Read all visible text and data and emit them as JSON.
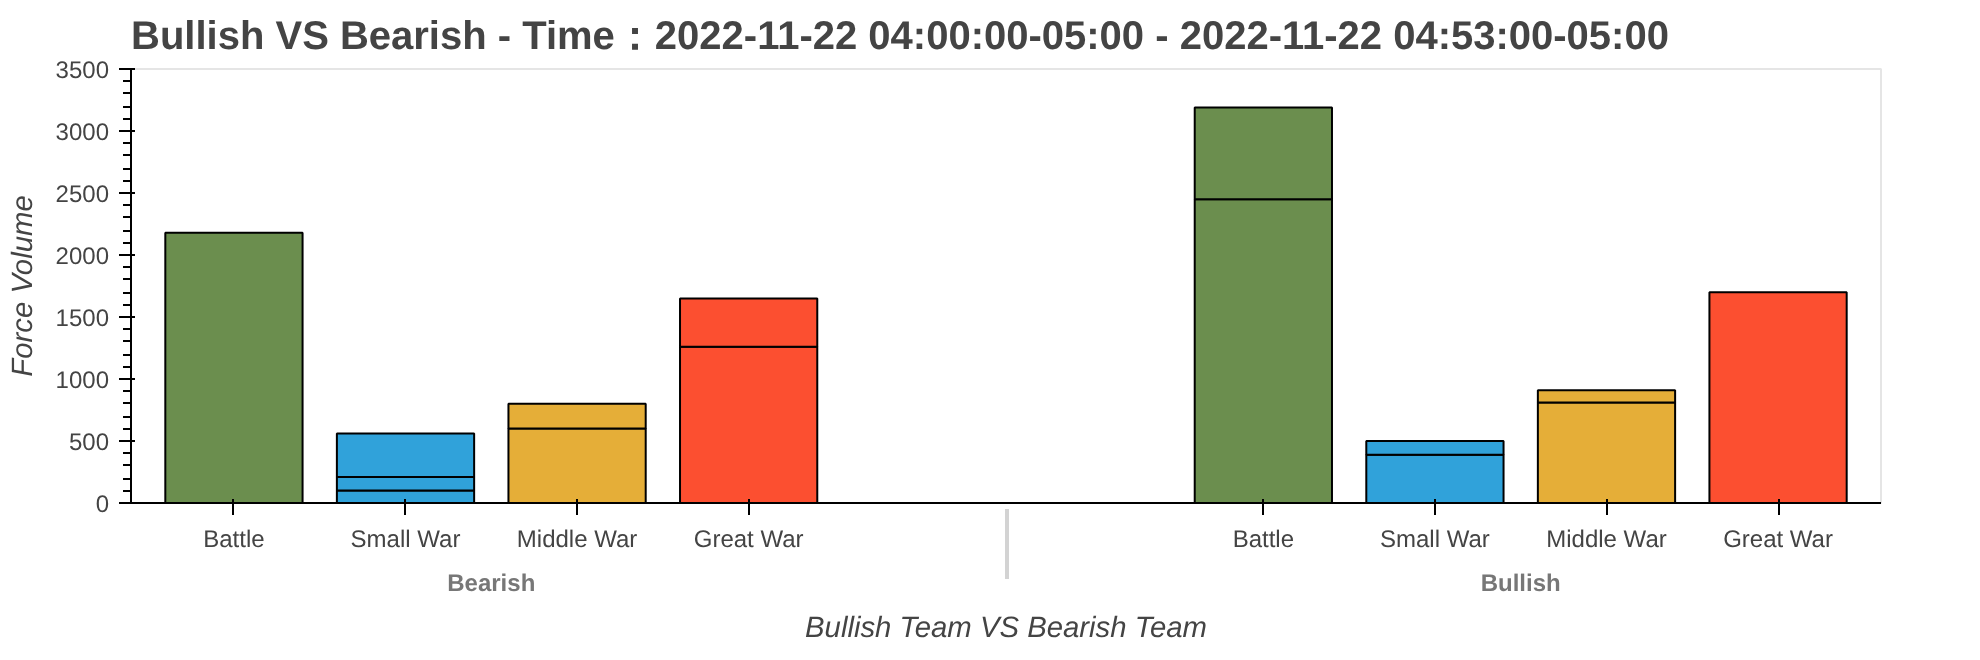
{
  "chart_data": {
    "type": "bar",
    "stacked": true,
    "title": "Bullish VS Bearish - Time：2022-11-22 04:00:00-05:00 - 2022-11-22 04:53:00-05:00",
    "xlabel": "Bullish Team VS Bearish Team",
    "ylabel": "Force Volume",
    "categories": [
      "Battle",
      "Small War",
      "Middle War",
      "Great War",
      "Battle",
      "Small War",
      "Middle War",
      "Great War"
    ],
    "annotations": [
      "Bearish",
      "Bullish"
    ],
    "series": [
      {
        "colors": [
          "#6b8e4e",
          "#30a2da",
          "#e5ae38",
          "#fc4f30",
          "#6b8e4e",
          "#30a2da",
          "#e5ae38",
          "#fc4f30"
        ],
        "values": [
          2180,
          100,
          600,
          1260,
          2450,
          390,
          810,
          1700
        ]
      },
      {
        "colors": [
          "#6b8e4e",
          "#30a2da",
          "#e5ae38",
          "#fc4f30",
          "#6b8e4e",
          "#30a2da",
          "#e5ae38",
          "#fc4f30"
        ],
        "values": [
          null,
          110,
          200,
          390,
          740,
          110,
          100,
          null
        ]
      },
      {
        "colors": [
          "#6b8e4e",
          "#30a2da",
          "#e5ae38",
          "#fc4f30",
          "#6b8e4e",
          "#30a2da",
          "#e5ae38",
          "#fc4f30"
        ],
        "values": [
          null,
          350,
          null,
          null,
          null,
          null,
          null,
          null
        ]
      }
    ],
    "ylim": [
      0,
      3500
    ],
    "yticks": [
      0,
      500,
      1000,
      1500,
      2000,
      2500,
      3000,
      3500
    ],
    "grid": false
  }
}
